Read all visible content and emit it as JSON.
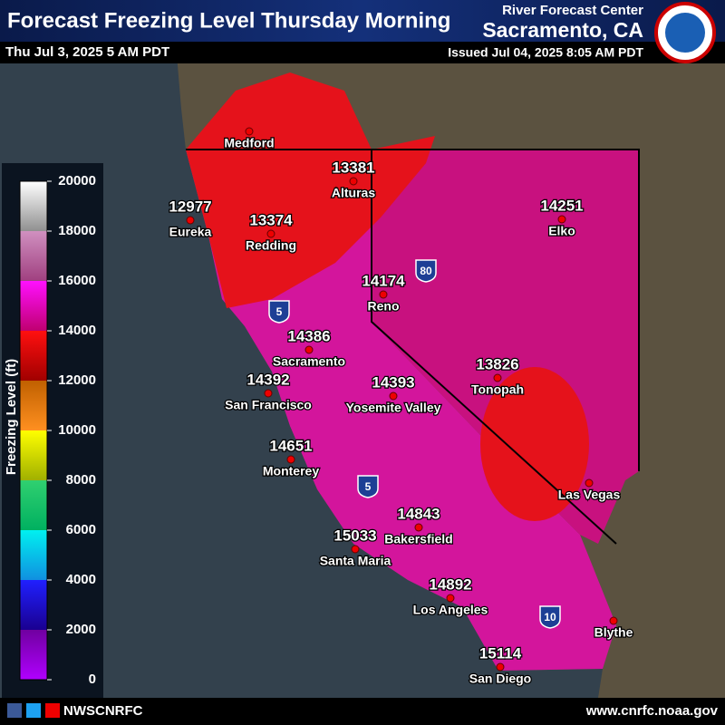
{
  "header": {
    "title": "Forecast Freezing Level Thursday Morning",
    "valid_time": "Thu Jul 3, 2025 5 AM PDT",
    "center_line1": "River Forecast Center",
    "center_line2": "Sacramento, CA",
    "issued": "Issued Jul 04, 2025 8:05 AM PDT"
  },
  "legend": {
    "title": "Freezing Level (ft)",
    "ticks": [
      0,
      2000,
      4000,
      6000,
      8000,
      10000,
      12000,
      14000,
      16000,
      18000,
      20000
    ]
  },
  "cities": [
    {
      "name": "Medford"
    },
    {
      "name": "Alturas",
      "value": 13381
    },
    {
      "name": "Eureka",
      "value": 12977
    },
    {
      "name": "Redding",
      "value": 13374
    },
    {
      "name": "Elko",
      "value": 14251
    },
    {
      "name": "Reno",
      "value": 14174
    },
    {
      "name": "Sacramento",
      "value": 14386
    },
    {
      "name": "San Francisco",
      "value": 14392
    },
    {
      "name": "Yosemite Valley",
      "value": 14393
    },
    {
      "name": "Tonopah",
      "value": 13826
    },
    {
      "name": "Monterey",
      "value": 14651
    },
    {
      "name": "Las Vegas"
    },
    {
      "name": "Bakersfield",
      "value": 14843
    },
    {
      "name": "Santa Maria",
      "value": 15033
    },
    {
      "name": "Los Angeles",
      "value": 14892
    },
    {
      "name": "Blythe"
    },
    {
      "name": "San Diego",
      "value": 15114
    }
  ],
  "highways": [
    "80",
    "5",
    "5",
    "10"
  ],
  "footer": {
    "social": "NWSCNRFC",
    "url": "www.cnrfc.noaa.gov"
  }
}
